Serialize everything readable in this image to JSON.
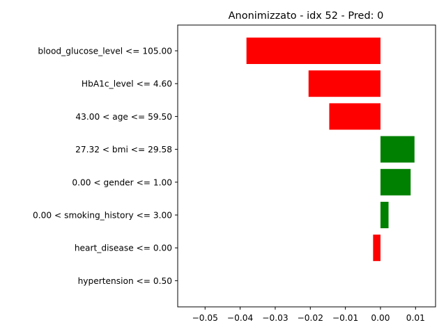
{
  "chart_data": {
    "type": "bar",
    "orientation": "horizontal",
    "title": "Anonimizzato - idx 52 - Pred: 0",
    "xlabel": "",
    "ylabel": "",
    "xlim": [
      -0.0578,
      0.0157
    ],
    "xticks": [
      -0.05,
      -0.04,
      -0.03,
      -0.02,
      -0.01,
      0.0,
      0.01
    ],
    "xtick_labels": [
      "−0.05",
      "−0.04",
      "−0.03",
      "−0.02",
      "−0.01",
      "0.00",
      "0.01"
    ],
    "grid": false,
    "colors": {
      "positive": "#008000",
      "negative": "#ff0000"
    },
    "categories": [
      "blood_glucose_level <= 105.00",
      "HbA1c_level <= 4.60",
      "43.00 < age <= 59.50",
      "27.32 < bmi <= 29.58",
      "0.00 < gender <= 1.00",
      "0.00 < smoking_history <= 3.00",
      "heart_disease <= 0.00",
      "hypertension <= 0.50"
    ],
    "values": [
      -0.0382,
      -0.0205,
      -0.0146,
      0.0097,
      0.0086,
      0.0023,
      -0.0021,
      0.0
    ]
  }
}
